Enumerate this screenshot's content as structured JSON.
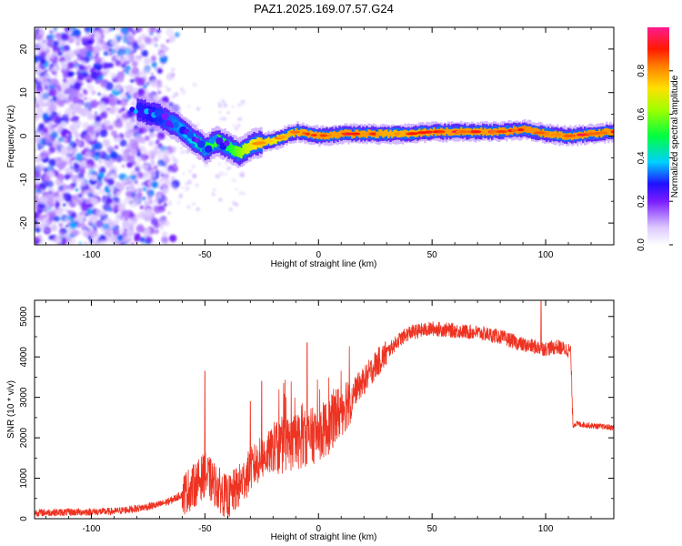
{
  "title": "PAZ1.2025.169.07.57.G24",
  "colors": {
    "snr_line": "#ee3322",
    "axis": "#000000",
    "background": "#ffffff"
  },
  "chart_data": [
    {
      "type": "heatmap",
      "xlabel": "Height of straight line (km)",
      "ylabel": "Frequency (Hz)",
      "xlim": [
        -125,
        130
      ],
      "ylim": [
        -25,
        25
      ],
      "xticks": [
        -100,
        -50,
        0,
        50,
        100
      ],
      "xtick_labels": [
        "-100",
        "-50",
        "0",
        "50",
        "100"
      ],
      "yticks": [
        -20,
        -10,
        0,
        10,
        20
      ],
      "ytick_labels": [
        "-20",
        "-10",
        "0",
        "10",
        "20"
      ],
      "colorbar": {
        "label": "Normalized spectral amplitude",
        "range": [
          0,
          1
        ],
        "ticks": [
          0.0,
          0.2,
          0.4,
          0.6,
          0.8
        ],
        "tick_labels": [
          "0.0",
          "0.2",
          "0.4",
          "0.6",
          "0.8"
        ]
      },
      "ridge": {
        "x": [
          -80,
          -70,
          -62,
          -55,
          -50,
          -45,
          -40,
          -35,
          -30,
          -25,
          -20,
          -15,
          -10,
          0,
          10,
          20,
          30,
          40,
          50,
          60,
          70,
          80,
          90,
          100,
          110,
          120,
          130
        ],
        "y": [
          6,
          4.5,
          2,
          -1,
          -3,
          -1,
          -2.5,
          -4,
          -2,
          -1.5,
          -1,
          0,
          1,
          0,
          0.5,
          0.5,
          0.5,
          0.5,
          1,
          1,
          1,
          1,
          1.5,
          0.5,
          0,
          0.5,
          1
        ],
        "amplitude": [
          0.25,
          0.3,
          0.35,
          0.4,
          0.5,
          0.55,
          0.5,
          0.6,
          0.7,
          0.75,
          0.7,
          0.75,
          0.8,
          0.85,
          0.85,
          0.85,
          0.8,
          0.8,
          0.85,
          0.85,
          0.85,
          0.85,
          0.9,
          0.85,
          0.85,
          0.85,
          0.85
        ]
      },
      "noise_region_x": [
        -125,
        -68
      ]
    },
    {
      "type": "line",
      "xlabel": "Height of straight line (km)",
      "ylabel": "SNR (10 * v/v)",
      "xlim": [
        -125,
        130
      ],
      "ylim": [
        0,
        5400
      ],
      "xticks": [
        -100,
        -50,
        0,
        50,
        100
      ],
      "xtick_labels": [
        "-100",
        "-50",
        "0",
        "50",
        "100"
      ],
      "yticks": [
        0,
        1000,
        2000,
        3000,
        4000,
        5000
      ],
      "ytick_labels": [
        "0",
        "1000",
        "2000",
        "3000",
        "4000",
        "5000"
      ],
      "series": [
        {
          "x": [
            -125,
            -110,
            -100,
            -90,
            -80,
            -70,
            -65,
            -60,
            -55,
            -50,
            -45,
            -40,
            -35,
            -30,
            -25,
            -20,
            -15,
            -10,
            -5,
            0,
            5,
            10,
            15,
            20,
            25,
            30,
            35,
            40,
            50,
            60,
            70,
            80,
            90,
            95,
            100,
            105,
            111,
            112,
            113,
            120,
            130
          ],
          "y": [
            150,
            160,
            170,
            180,
            250,
            350,
            450,
            600,
            800,
            1100,
            800,
            500,
            800,
            1200,
            1500,
            1700,
            1800,
            1900,
            2000,
            2100,
            2300,
            2700,
            3100,
            3400,
            3800,
            4100,
            4400,
            4600,
            4700,
            4650,
            4600,
            4500,
            4300,
            4250,
            4200,
            4250,
            4150,
            2300,
            2350,
            2300,
            2250
          ],
          "spikes": [
            {
              "x": -50,
              "y": 3650
            },
            {
              "x": -30,
              "y": 2900
            },
            {
              "x": -25,
              "y": 3400
            },
            {
              "x": -5,
              "y": 4350
            },
            {
              "x": 98,
              "y": 5400
            }
          ]
        }
      ]
    }
  ]
}
